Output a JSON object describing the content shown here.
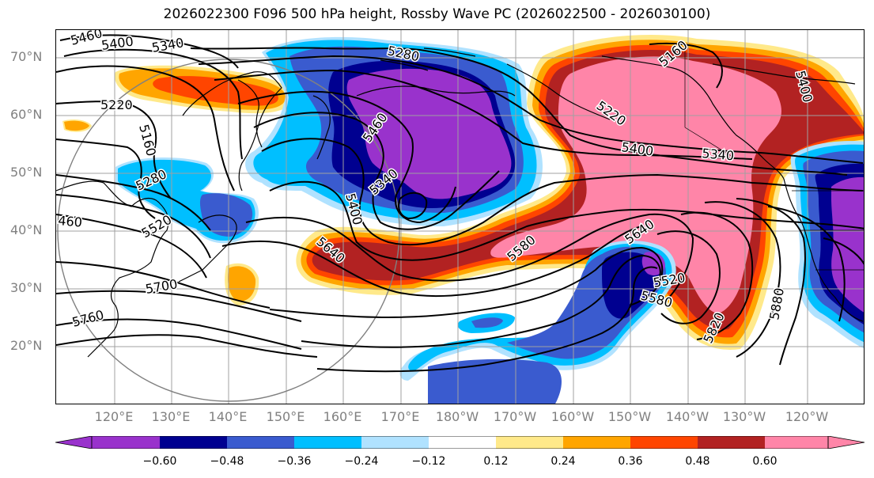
{
  "title": "2026022300 F096 500 hPa height, Rossby Wave PC (2026022500 - 2026030100)",
  "lat_labels": [
    "70°N",
    "60°N",
    "50°N",
    "40°N",
    "30°N",
    "20°N"
  ],
  "lon_labels": [
    "120°E",
    "130°E",
    "140°E",
    "150°E",
    "160°E",
    "170°E",
    "180°W",
    "170°W",
    "160°W",
    "150°W",
    "140°W",
    "130°W",
    "120°W"
  ],
  "colorbar": {
    "ticks": [
      "−0.60",
      "−0.48",
      "−0.36",
      "−0.24",
      "−0.12",
      "0.12",
      "0.24",
      "0.36",
      "0.48",
      "0.60"
    ],
    "colors": [
      "#9932cc",
      "#000090",
      "#3a5bcf",
      "#00bfff",
      "#b0e2ff",
      "#ffffff",
      "#ffe98a",
      "#ffa500",
      "#ff4500",
      "#b22222",
      "#ff85a8"
    ]
  },
  "contour_labels": [
    "5460",
    "5400",
    "5340",
    "5280",
    "5220",
    "5160",
    "5280",
    "460",
    "5520",
    "5700",
    "5760",
    "5460",
    "5340",
    "5400",
    "5640",
    "5580",
    "5640",
    "5520",
    "5580",
    "5820",
    "5880",
    "5220",
    "5400",
    "5340",
    "5160",
    "5400"
  ],
  "shading_colors": {
    "pink": "#ff85a8",
    "red": "#b22222",
    "orange_red": "#ff4500",
    "orange": "#ffa500",
    "yellow": "#ffe98a",
    "light_blue": "#b0e2ff",
    "cyan": "#00bfff",
    "blue": "#3a5bcf",
    "navy": "#000090",
    "purple": "#9932cc"
  }
}
